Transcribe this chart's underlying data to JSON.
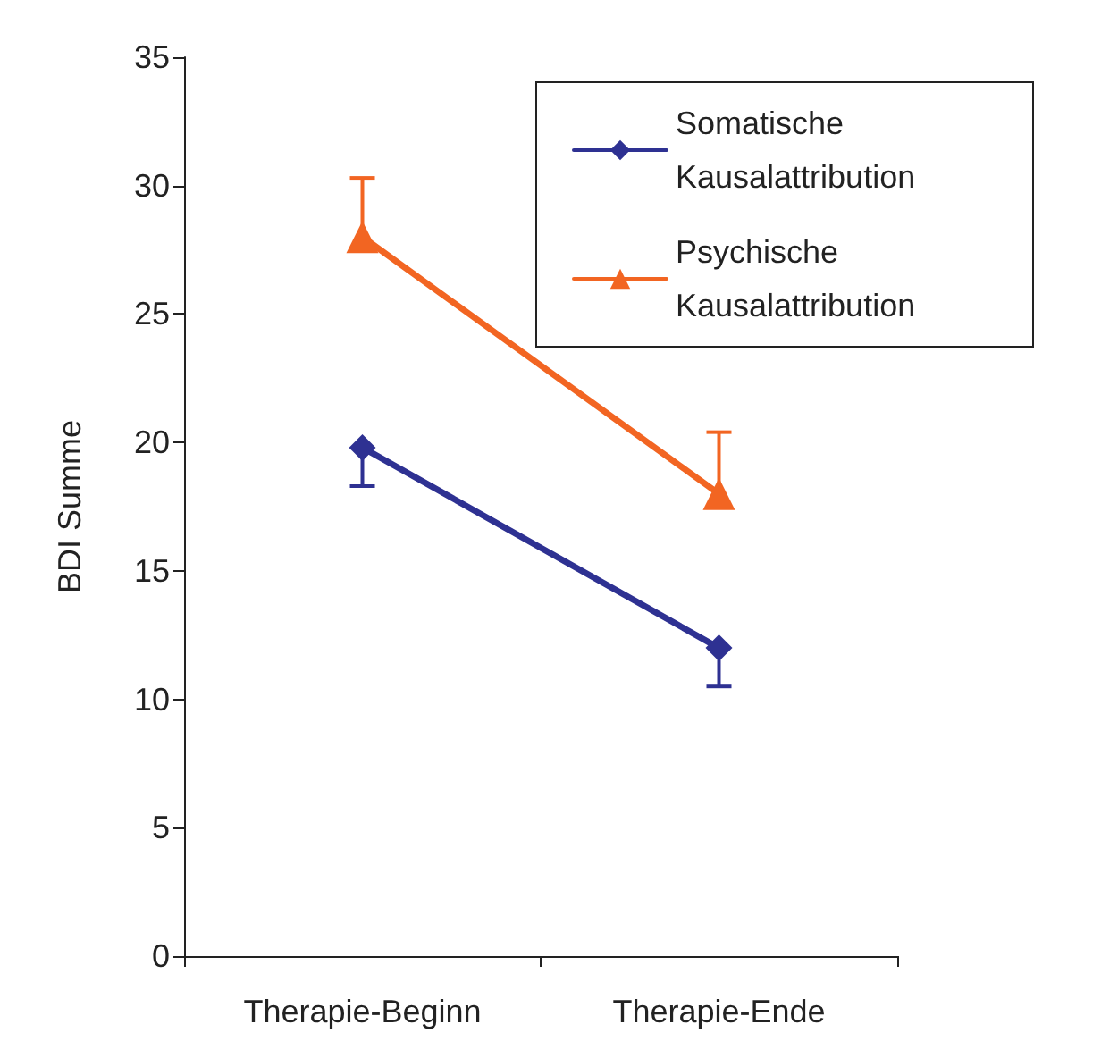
{
  "chart_data": {
    "type": "line",
    "ylabel": "BDI Summe",
    "categories": [
      "Therapie-Beginn",
      "Therapie-Ende"
    ],
    "series": [
      {
        "name": "Somatische Kausalattribution",
        "color": "#2e3192",
        "values": [
          19.8,
          12
        ],
        "errors": [
          [
            18.3,
            19.8
          ],
          [
            10.5,
            12
          ]
        ],
        "marker": "diamond"
      },
      {
        "name": "Psychische Kausalattribution",
        "color": "#f26522",
        "values": [
          28,
          18
        ],
        "errors": [
          [
            28,
            30.3
          ],
          [
            18,
            20.4
          ]
        ],
        "marker": "triangle"
      }
    ],
    "ylim": [
      0,
      35
    ],
    "yticks": [
      0,
      5,
      10,
      15,
      20,
      25,
      30,
      35
    ],
    "grid": false,
    "legend": "top right",
    "line_style": "solid"
  }
}
